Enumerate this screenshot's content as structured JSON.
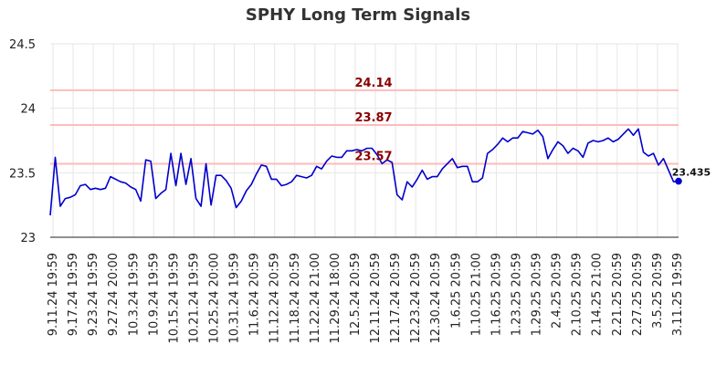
{
  "title": "SPHY Long Term Signals",
  "chart_data": {
    "type": "line",
    "title": "SPHY Long Term Signals",
    "xlabel": "",
    "ylabel": "",
    "ylim": [
      23,
      24.5
    ],
    "y_ticks": [
      "23",
      "23.5",
      "24",
      "24.5"
    ],
    "x_tick_labels": [
      "9.11.24 19:59",
      "9.17.24 19:59",
      "9.23.24 19:59",
      "9.27.24 20:00",
      "10.3.24 19:59",
      "10.9.24 19:59",
      "10.15.24 19:59",
      "10.21.24 19:59",
      "10.25.24 20:00",
      "10.31.24 19:59",
      "11.6.24 20:59",
      "11.12.24 20:59",
      "11.18.24 20:59",
      "11.22.24 21:00",
      "11.29.24 18:00",
      "12.5.24 20:59",
      "12.11.24 20:59",
      "12.17.24 20:59",
      "12.23.24 20:59",
      "12.30.24 20:59",
      "1.6.25 20:59",
      "1.10.25 21:00",
      "1.16.25 20:59",
      "1.23.25 20:59",
      "1.29.25 20:59",
      "2.4.25 20:59",
      "2.10.25 20:59",
      "2.14.25 21:00",
      "2.21.25 20:59",
      "2.27.25 20:59",
      "3.5.25 20:59",
      "3.11.25 19:59"
    ],
    "grid": true,
    "series_color": "#0000cc",
    "reference_line_color": "#ffbbbb",
    "reference_label_color": "#8b0000",
    "reference_lines": [
      {
        "value": 24.14,
        "label": "24.14"
      },
      {
        "value": 23.87,
        "label": "23.87"
      },
      {
        "value": 23.57,
        "label": "23.57"
      }
    ],
    "last_value_label": "23.435",
    "series": [
      {
        "values": [
          23.17,
          23.62,
          23.24,
          23.3,
          23.31,
          23.33,
          23.4,
          23.41,
          23.37,
          23.38,
          23.37,
          23.38,
          23.47,
          23.45,
          23.43,
          23.42,
          23.39,
          23.37,
          23.28,
          23.6,
          23.59,
          23.3,
          23.34,
          23.37,
          23.65,
          23.4,
          23.65,
          23.41,
          23.61,
          23.3,
          23.24,
          23.57,
          23.25,
          23.48,
          23.48,
          23.44,
          23.38,
          23.23,
          23.28,
          23.36,
          23.41,
          23.49,
          23.56,
          23.55,
          23.45,
          23.45,
          23.4,
          23.41,
          23.43,
          23.48,
          23.47,
          23.46,
          23.48,
          23.55,
          23.53,
          23.59,
          23.63,
          23.62,
          23.62,
          23.67,
          23.67,
          23.68,
          23.67,
          23.69,
          23.69,
          23.64,
          23.57,
          23.6,
          23.58,
          23.33,
          23.29,
          23.43,
          23.39,
          23.45,
          23.52,
          23.45,
          23.47,
          23.47,
          23.53,
          23.57,
          23.61,
          23.54,
          23.55,
          23.55,
          23.43,
          23.43,
          23.46,
          23.65,
          23.68,
          23.72,
          23.77,
          23.74,
          23.77,
          23.77,
          23.82,
          23.81,
          23.8,
          23.83,
          23.78,
          23.61,
          23.68,
          23.74,
          23.71,
          23.65,
          23.69,
          23.67,
          23.62,
          23.73,
          23.75,
          23.74,
          23.75,
          23.77,
          23.74,
          23.76,
          23.8,
          23.84,
          23.79,
          23.84,
          23.66,
          23.63,
          23.65,
          23.56,
          23.61,
          23.52,
          23.43,
          23.435
        ]
      }
    ]
  }
}
